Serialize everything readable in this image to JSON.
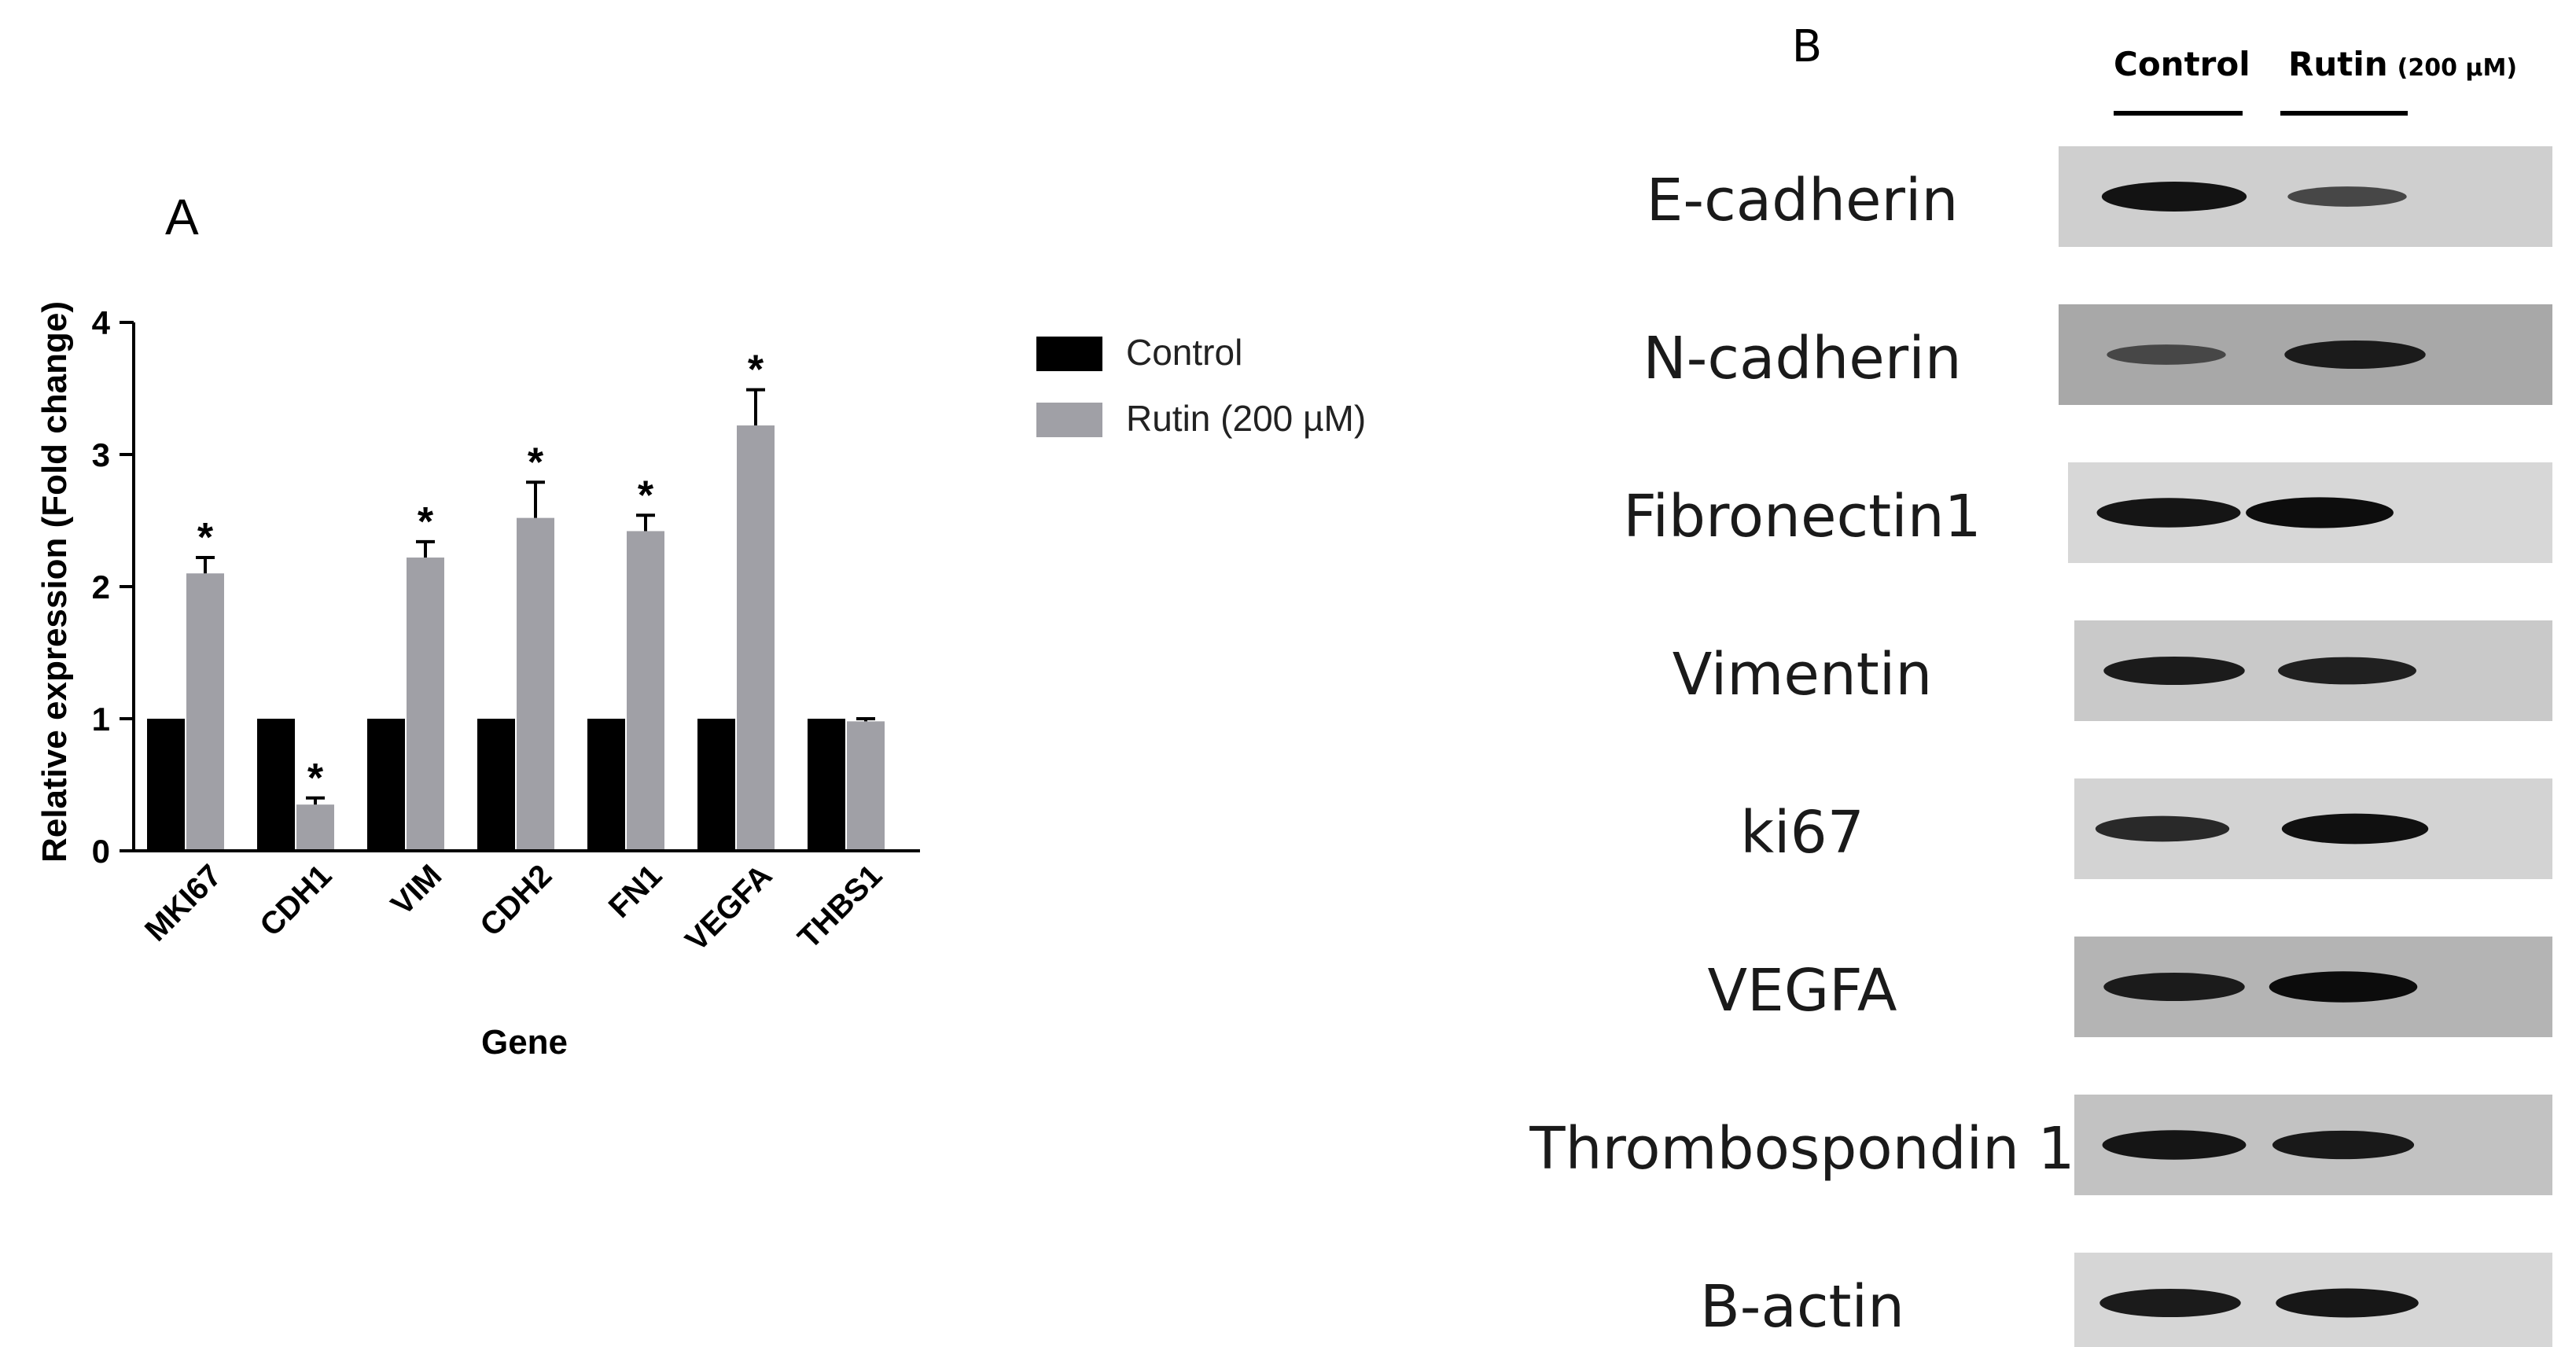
{
  "chart_data": [
    {
      "type": "bar",
      "panel_label": "A",
      "title": "",
      "xlabel": "Gene",
      "ylabel": "Relative expression (Fold change)",
      "ylim": [
        0,
        4
      ],
      "yticks": [
        "0",
        "1",
        "2",
        "3",
        "4"
      ],
      "categories": [
        "MKI67",
        "CDH1",
        "VIM",
        "CDH2",
        "FN1",
        "VEGFA",
        "THBS1"
      ],
      "series": [
        {
          "name": "Control",
          "color": "#000000",
          "values": [
            1,
            1,
            1,
            1,
            1,
            1,
            1
          ],
          "errors": [
            0,
            0,
            0,
            0,
            0,
            0,
            0
          ]
        },
        {
          "name": "Rutin (200 µM)",
          "color": "#a0a0a6",
          "values": [
            2.1,
            0.35,
            2.22,
            2.52,
            2.42,
            3.22,
            0.98
          ],
          "errors": [
            0.12,
            0.05,
            0.12,
            0.27,
            0.12,
            0.27,
            0.02
          ]
        }
      ],
      "significance": [
        "*",
        "*",
        "*",
        "*",
        "*",
        "*",
        ""
      ],
      "grid": false,
      "legend_position": "right"
    }
  ],
  "western_blot": {
    "panel_label": "B",
    "lanes": [
      {
        "label": "Control",
        "subscript": ""
      },
      {
        "label": "Rutin",
        "subscript": "(200 µM)"
      }
    ],
    "rows": [
      {
        "protein": "E-cadherin",
        "background": "#cfcfcf",
        "intensity": [
          0.92,
          0.45
        ]
      },
      {
        "protein": "N-cadherin",
        "background": "#a8a8a8",
        "intensity": [
          0.45,
          0.85
        ]
      },
      {
        "protein": "Fibronectin1",
        "background": "#d7d7d7",
        "intensity": [
          0.9,
          0.97
        ]
      },
      {
        "protein": "Vimentin",
        "background": "#c9c9c9",
        "intensity": [
          0.85,
          0.8
        ]
      },
      {
        "protein": "ki67",
        "background": "#d3d3d3",
        "intensity": [
          0.72,
          0.95
        ]
      },
      {
        "protein": "VEGFA",
        "background": "#b4b4b4",
        "intensity": [
          0.85,
          0.98
        ]
      },
      {
        "protein": "Thrombospondin 1",
        "background": "#c2c2c2",
        "intensity": [
          0.9,
          0.86
        ]
      },
      {
        "protein": "B-actin",
        "background": "#d6d6d6",
        "intensity": [
          0.85,
          0.88
        ]
      }
    ]
  }
}
